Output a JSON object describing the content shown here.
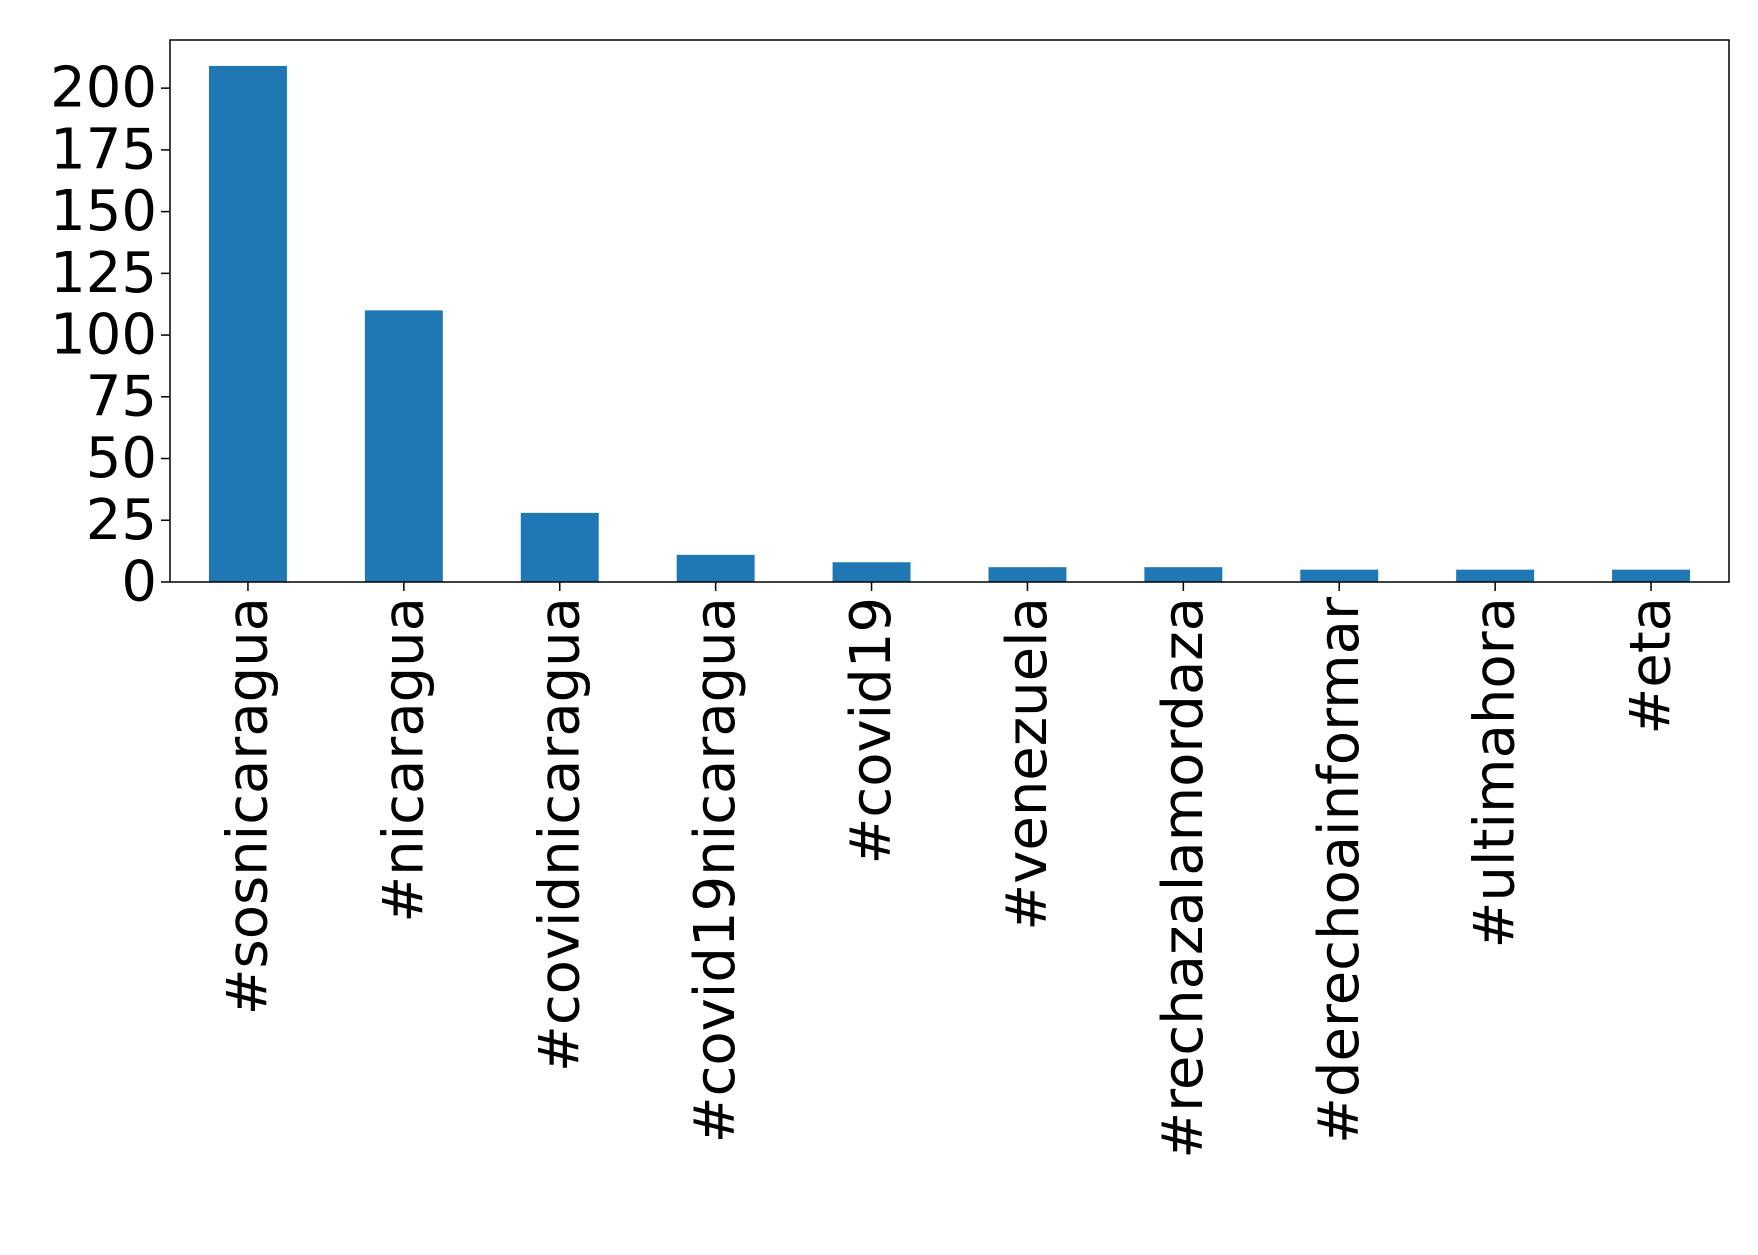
{
  "chart_data": {
    "type": "bar",
    "categories": [
      "#sosnicaragua",
      "#nicaragua",
      "#covidnicaragua",
      "#covid19nicaragua",
      "#covid19",
      "#venezuela",
      "#rechazalamordaza",
      "#derechoainformar",
      "#ultimahora",
      "#eta"
    ],
    "values": [
      209,
      110,
      28,
      11,
      8,
      6,
      6,
      5,
      5,
      5
    ],
    "yticks": [
      0,
      25,
      50,
      75,
      100,
      125,
      150,
      175,
      200
    ],
    "ylim": [
      0,
      219.5
    ],
    "title": "",
    "xlabel": "",
    "ylabel": "",
    "bar_color": "#1f77b4",
    "grid": false,
    "legend": false
  }
}
